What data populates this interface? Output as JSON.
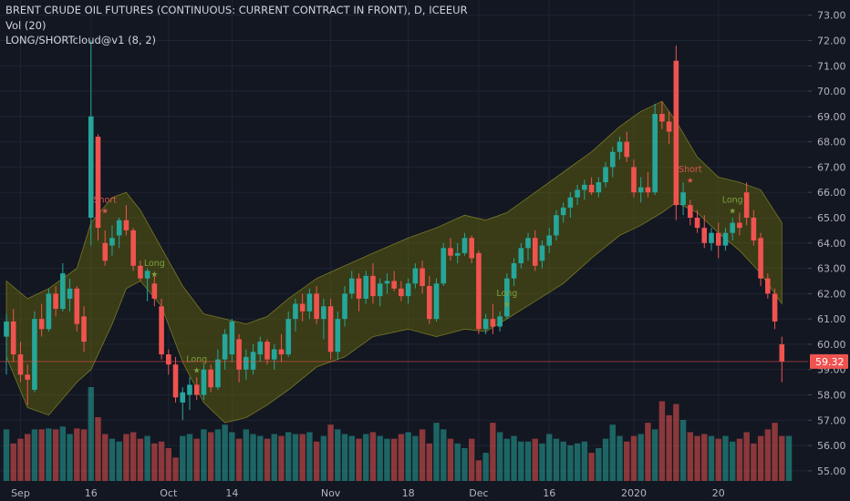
{
  "header": {
    "title": "BRENT CRUDE OIL FUTURES (CONTINUOUS: CURRENT CONTRACT IN FRONT), D, ICEEUR",
    "volume_label": "Vol (20)",
    "indicator_label": "LONG/SHORTcloud@v1 (8, 2)"
  },
  "colors": {
    "background": "#131722",
    "grid": "#1f2433",
    "up": "#26a69a",
    "down": "#ef5350",
    "cloud_fill": "#808000",
    "cloud_edge": "#9a9a2a",
    "signal": "#7fa040",
    "short_signal": "#d9534f",
    "axis_text": "#b2b5be",
    "price_line": "#ef5350"
  },
  "chart_data": {
    "type": "candlestick",
    "title": "BRENT CRUDE OIL FUTURES (CONTINUOUS: CURRENT CONTRACT IN FRONT), D, ICEEUR",
    "ylim": [
      54.6,
      73.6
    ],
    "y_ticks": [
      "55.00",
      "56.00",
      "57.00",
      "58.00",
      "59.00",
      "60.00",
      "61.00",
      "62.00",
      "63.00",
      "64.00",
      "65.00",
      "66.00",
      "67.00",
      "68.00",
      "69.00",
      "70.00",
      "71.00",
      "72.00",
      "73.00"
    ],
    "x_ticks": [
      {
        "label": "Sep",
        "index": 2
      },
      {
        "label": "16",
        "index": 12
      },
      {
        "label": "Oct",
        "index": 23
      },
      {
        "label": "14",
        "index": 32
      },
      {
        "label": "Nov",
        "index": 46
      },
      {
        "label": "18",
        "index": 57
      },
      {
        "label": "Dec",
        "index": 67
      },
      {
        "label": "16",
        "index": 77
      },
      {
        "label": "2020",
        "index": 89
      },
      {
        "label": "20",
        "index": 101
      }
    ],
    "last_price": 59.32,
    "last_price_label": "59.32",
    "candles": [
      {
        "o": 60.3,
        "h": 61.2,
        "l": 58.8,
        "c": 60.9
      },
      {
        "o": 60.9,
        "h": 61.4,
        "l": 59.3,
        "c": 59.6
      },
      {
        "o": 59.6,
        "h": 60.1,
        "l": 58.5,
        "c": 58.8
      },
      {
        "o": 58.8,
        "h": 59.2,
        "l": 57.6,
        "c": 58.6
      },
      {
        "o": 58.2,
        "h": 61.3,
        "l": 58.1,
        "c": 61.0
      },
      {
        "o": 61.0,
        "h": 61.6,
        "l": 60.3,
        "c": 60.6
      },
      {
        "o": 60.6,
        "h": 62.2,
        "l": 60.5,
        "c": 62.0
      },
      {
        "o": 62.0,
        "h": 62.3,
        "l": 61.1,
        "c": 61.4
      },
      {
        "o": 61.4,
        "h": 63.2,
        "l": 61.3,
        "c": 62.8
      },
      {
        "o": 61.8,
        "h": 62.6,
        "l": 61.3,
        "c": 62.2
      },
      {
        "o": 62.2,
        "h": 62.3,
        "l": 60.5,
        "c": 60.8
      },
      {
        "o": 61.1,
        "h": 61.5,
        "l": 59.7,
        "c": 60.1
      },
      {
        "o": 65.0,
        "h": 72.0,
        "l": 63.9,
        "c": 69.0
      },
      {
        "o": 68.2,
        "h": 68.3,
        "l": 64.1,
        "c": 64.6
      },
      {
        "o": 64.0,
        "h": 64.5,
        "l": 63.1,
        "c": 63.3
      },
      {
        "o": 63.9,
        "h": 64.7,
        "l": 63.5,
        "c": 64.2
      },
      {
        "o": 64.3,
        "h": 65.0,
        "l": 63.8,
        "c": 64.9
      },
      {
        "o": 64.9,
        "h": 65.5,
        "l": 64.3,
        "c": 64.5
      },
      {
        "o": 64.5,
        "h": 64.6,
        "l": 62.9,
        "c": 63.1
      },
      {
        "o": 63.1,
        "h": 63.3,
        "l": 62.5,
        "c": 62.6
      },
      {
        "o": 62.6,
        "h": 63.0,
        "l": 61.7,
        "c": 62.9
      },
      {
        "o": 62.4,
        "h": 62.8,
        "l": 61.5,
        "c": 61.8
      },
      {
        "o": 61.5,
        "h": 61.8,
        "l": 59.4,
        "c": 59.6
      },
      {
        "o": 59.6,
        "h": 59.8,
        "l": 58.8,
        "c": 59.2
      },
      {
        "o": 59.2,
        "h": 59.5,
        "l": 57.7,
        "c": 57.9
      },
      {
        "o": 57.7,
        "h": 58.3,
        "l": 57.0,
        "c": 58.1
      },
      {
        "o": 58.0,
        "h": 58.7,
        "l": 57.4,
        "c": 58.4
      },
      {
        "o": 58.4,
        "h": 58.7,
        "l": 57.8,
        "c": 58.0
      },
      {
        "o": 58.0,
        "h": 59.2,
        "l": 57.8,
        "c": 59.0
      },
      {
        "o": 59.0,
        "h": 59.2,
        "l": 58.1,
        "c": 58.3
      },
      {
        "o": 58.3,
        "h": 59.8,
        "l": 58.2,
        "c": 59.4
      },
      {
        "o": 59.4,
        "h": 60.6,
        "l": 59.0,
        "c": 60.4
      },
      {
        "o": 59.6,
        "h": 61.0,
        "l": 59.3,
        "c": 60.9
      },
      {
        "o": 60.2,
        "h": 60.4,
        "l": 58.5,
        "c": 59.0
      },
      {
        "o": 59.0,
        "h": 59.8,
        "l": 58.6,
        "c": 59.5
      },
      {
        "o": 59.0,
        "h": 60.0,
        "l": 58.8,
        "c": 59.7
      },
      {
        "o": 59.6,
        "h": 60.3,
        "l": 59.3,
        "c": 60.1
      },
      {
        "o": 60.1,
        "h": 60.2,
        "l": 59.2,
        "c": 59.4
      },
      {
        "o": 59.4,
        "h": 60.0,
        "l": 59.0,
        "c": 59.8
      },
      {
        "o": 59.8,
        "h": 60.4,
        "l": 59.3,
        "c": 59.6
      },
      {
        "o": 59.6,
        "h": 61.3,
        "l": 59.5,
        "c": 61.0
      },
      {
        "o": 61.0,
        "h": 61.8,
        "l": 60.5,
        "c": 61.6
      },
      {
        "o": 61.6,
        "h": 62.0,
        "l": 60.9,
        "c": 61.3
      },
      {
        "o": 61.3,
        "h": 62.2,
        "l": 61.0,
        "c": 62.0
      },
      {
        "o": 62.0,
        "h": 62.3,
        "l": 60.8,
        "c": 61.0
      },
      {
        "o": 61.0,
        "h": 61.8,
        "l": 60.2,
        "c": 61.5
      },
      {
        "o": 61.5,
        "h": 61.8,
        "l": 59.4,
        "c": 59.7
      },
      {
        "o": 59.7,
        "h": 61.3,
        "l": 59.4,
        "c": 61.0
      },
      {
        "o": 61.0,
        "h": 62.3,
        "l": 60.7,
        "c": 62.0
      },
      {
        "o": 62.0,
        "h": 62.9,
        "l": 61.8,
        "c": 62.6
      },
      {
        "o": 62.6,
        "h": 62.8,
        "l": 61.3,
        "c": 61.8
      },
      {
        "o": 61.8,
        "h": 62.9,
        "l": 61.6,
        "c": 62.7
      },
      {
        "o": 62.7,
        "h": 63.2,
        "l": 61.6,
        "c": 61.9
      },
      {
        "o": 61.9,
        "h": 62.6,
        "l": 61.5,
        "c": 62.4
      },
      {
        "o": 62.4,
        "h": 62.8,
        "l": 62.0,
        "c": 62.5
      },
      {
        "o": 62.5,
        "h": 62.9,
        "l": 62.1,
        "c": 62.2
      },
      {
        "o": 62.2,
        "h": 62.5,
        "l": 61.7,
        "c": 61.9
      },
      {
        "o": 61.9,
        "h": 62.6,
        "l": 61.6,
        "c": 62.4
      },
      {
        "o": 62.4,
        "h": 63.2,
        "l": 62.2,
        "c": 63.0
      },
      {
        "o": 63.0,
        "h": 63.3,
        "l": 62.0,
        "c": 62.3
      },
      {
        "o": 62.3,
        "h": 62.7,
        "l": 60.8,
        "c": 61.0
      },
      {
        "o": 61.0,
        "h": 62.6,
        "l": 60.9,
        "c": 62.4
      },
      {
        "o": 62.4,
        "h": 64.0,
        "l": 62.3,
        "c": 63.8
      },
      {
        "o": 63.8,
        "h": 64.2,
        "l": 63.3,
        "c": 63.5
      },
      {
        "o": 63.5,
        "h": 64.0,
        "l": 63.2,
        "c": 63.6
      },
      {
        "o": 63.6,
        "h": 64.4,
        "l": 63.5,
        "c": 64.2
      },
      {
        "o": 64.2,
        "h": 64.3,
        "l": 63.2,
        "c": 63.4
      },
      {
        "o": 63.6,
        "h": 63.7,
        "l": 60.4,
        "c": 60.6
      },
      {
        "o": 60.6,
        "h": 61.2,
        "l": 60.4,
        "c": 61.0
      },
      {
        "o": 61.0,
        "h": 61.6,
        "l": 60.4,
        "c": 60.7
      },
      {
        "o": 60.7,
        "h": 61.3,
        "l": 60.5,
        "c": 61.1
      },
      {
        "o": 61.1,
        "h": 62.8,
        "l": 61.0,
        "c": 62.6
      },
      {
        "o": 62.6,
        "h": 63.4,
        "l": 62.3,
        "c": 63.2
      },
      {
        "o": 63.2,
        "h": 64.0,
        "l": 63.0,
        "c": 63.8
      },
      {
        "o": 63.8,
        "h": 64.4,
        "l": 63.3,
        "c": 64.2
      },
      {
        "o": 64.2,
        "h": 64.5,
        "l": 62.9,
        "c": 63.1
      },
      {
        "o": 63.3,
        "h": 64.1,
        "l": 63.0,
        "c": 63.9
      },
      {
        "o": 63.9,
        "h": 64.6,
        "l": 63.6,
        "c": 64.3
      },
      {
        "o": 64.3,
        "h": 65.3,
        "l": 64.1,
        "c": 65.1
      },
      {
        "o": 65.1,
        "h": 65.6,
        "l": 64.8,
        "c": 65.4
      },
      {
        "o": 65.4,
        "h": 66.0,
        "l": 65.0,
        "c": 65.8
      },
      {
        "o": 65.8,
        "h": 66.3,
        "l": 65.5,
        "c": 66.1
      },
      {
        "o": 66.1,
        "h": 66.5,
        "l": 65.7,
        "c": 66.3
      },
      {
        "o": 66.3,
        "h": 66.6,
        "l": 65.9,
        "c": 66.0
      },
      {
        "o": 66.0,
        "h": 66.6,
        "l": 65.8,
        "c": 66.4
      },
      {
        "o": 66.4,
        "h": 67.2,
        "l": 66.2,
        "c": 67.0
      },
      {
        "o": 67.0,
        "h": 67.8,
        "l": 66.6,
        "c": 67.6
      },
      {
        "o": 67.6,
        "h": 68.2,
        "l": 67.3,
        "c": 68.0
      },
      {
        "o": 68.0,
        "h": 68.4,
        "l": 67.2,
        "c": 67.4
      },
      {
        "o": 67.0,
        "h": 67.3,
        "l": 65.8,
        "c": 66.0
      },
      {
        "o": 66.0,
        "h": 66.6,
        "l": 65.6,
        "c": 66.2
      },
      {
        "o": 66.2,
        "h": 66.8,
        "l": 65.8,
        "c": 66.0
      },
      {
        "o": 66.0,
        "h": 69.5,
        "l": 65.9,
        "c": 69.1
      },
      {
        "o": 69.1,
        "h": 69.6,
        "l": 68.5,
        "c": 68.8
      },
      {
        "o": 68.8,
        "h": 69.2,
        "l": 67.9,
        "c": 68.4
      },
      {
        "o": 71.2,
        "h": 71.8,
        "l": 64.9,
        "c": 65.5
      },
      {
        "o": 65.5,
        "h": 66.4,
        "l": 65.1,
        "c": 66.0
      },
      {
        "o": 65.5,
        "h": 65.7,
        "l": 64.7,
        "c": 65.0
      },
      {
        "o": 65.0,
        "h": 65.3,
        "l": 64.4,
        "c": 64.6
      },
      {
        "o": 64.6,
        "h": 65.1,
        "l": 63.8,
        "c": 64.0
      },
      {
        "o": 64.0,
        "h": 64.6,
        "l": 63.7,
        "c": 64.4
      },
      {
        "o": 64.4,
        "h": 64.8,
        "l": 63.4,
        "c": 63.9
      },
      {
        "o": 63.9,
        "h": 64.6,
        "l": 63.7,
        "c": 64.4
      },
      {
        "o": 64.4,
        "h": 65.0,
        "l": 64.1,
        "c": 64.8
      },
      {
        "o": 64.8,
        "h": 65.2,
        "l": 64.3,
        "c": 64.6
      },
      {
        "o": 66.0,
        "h": 66.4,
        "l": 64.7,
        "c": 65.0
      },
      {
        "o": 65.0,
        "h": 65.3,
        "l": 63.9,
        "c": 64.1
      },
      {
        "o": 64.2,
        "h": 64.4,
        "l": 62.3,
        "c": 62.6
      },
      {
        "o": 62.6,
        "h": 62.8,
        "l": 61.8,
        "c": 62.0
      },
      {
        "o": 62.0,
        "h": 62.2,
        "l": 60.6,
        "c": 60.9
      },
      {
        "o": 60.0,
        "h": 60.3,
        "l": 58.5,
        "c": 59.32
      }
    ],
    "volume": [
      55,
      40,
      45,
      50,
      55,
      55,
      56,
      55,
      58,
      50,
      56,
      55,
      100,
      68,
      50,
      45,
      42,
      50,
      52,
      45,
      48,
      40,
      42,
      35,
      25,
      48,
      50,
      45,
      55,
      52,
      55,
      60,
      52,
      45,
      55,
      50,
      48,
      45,
      50,
      48,
      52,
      50,
      50,
      52,
      42,
      48,
      60,
      55,
      50,
      48,
      45,
      50,
      52,
      48,
      45,
      45,
      50,
      52,
      48,
      55,
      40,
      62,
      55,
      45,
      40,
      35,
      45,
      22,
      30,
      62,
      52,
      45,
      48,
      42,
      42,
      45,
      40,
      50,
      45,
      42,
      38,
      40,
      42,
      30,
      35,
      45,
      60,
      48,
      42,
      48,
      50,
      62,
      55,
      85,
      70,
      82,
      65,
      52,
      48,
      50,
      48,
      45,
      48,
      42,
      45,
      52,
      40,
      48,
      55,
      62,
      48,
      48
    ],
    "cloud": [
      {
        "i": 0,
        "u": 62.5,
        "l": 59.5
      },
      {
        "i": 3,
        "u": 61.8,
        "l": 57.5
      },
      {
        "i": 6,
        "u": 62.2,
        "l": 57.2
      },
      {
        "i": 10,
        "u": 63.0,
        "l": 58.5
      },
      {
        "i": 12,
        "u": 64.8,
        "l": 59.0
      },
      {
        "i": 15,
        "u": 65.8,
        "l": 60.8
      },
      {
        "i": 17,
        "u": 66.0,
        "l": 62.2
      },
      {
        "i": 19,
        "u": 65.3,
        "l": 62.5
      },
      {
        "i": 22,
        "u": 63.8,
        "l": 61.5
      },
      {
        "i": 25,
        "u": 62.3,
        "l": 59.3
      },
      {
        "i": 28,
        "u": 61.2,
        "l": 57.7
      },
      {
        "i": 31,
        "u": 61.0,
        "l": 56.9
      },
      {
        "i": 34,
        "u": 60.8,
        "l": 57.1
      },
      {
        "i": 37,
        "u": 61.1,
        "l": 57.6
      },
      {
        "i": 40,
        "u": 61.8,
        "l": 58.2
      },
      {
        "i": 44,
        "u": 62.6,
        "l": 59.1
      },
      {
        "i": 48,
        "u": 63.1,
        "l": 59.5
      },
      {
        "i": 52,
        "u": 63.6,
        "l": 60.3
      },
      {
        "i": 57,
        "u": 64.2,
        "l": 60.6
      },
      {
        "i": 61,
        "u": 64.6,
        "l": 60.3
      },
      {
        "i": 65,
        "u": 65.1,
        "l": 60.6
      },
      {
        "i": 68,
        "u": 64.9,
        "l": 60.5
      },
      {
        "i": 71,
        "u": 65.2,
        "l": 61.0
      },
      {
        "i": 75,
        "u": 66.0,
        "l": 61.7
      },
      {
        "i": 79,
        "u": 66.8,
        "l": 62.4
      },
      {
        "i": 83,
        "u": 67.6,
        "l": 63.4
      },
      {
        "i": 87,
        "u": 68.6,
        "l": 64.3
      },
      {
        "i": 90,
        "u": 69.2,
        "l": 64.7
      },
      {
        "i": 93,
        "u": 69.6,
        "l": 65.2
      },
      {
        "i": 95,
        "u": 68.8,
        "l": 65.6
      },
      {
        "i": 98,
        "u": 67.4,
        "l": 65.2
      },
      {
        "i": 101,
        "u": 66.6,
        "l": 64.4
      },
      {
        "i": 104,
        "u": 66.4,
        "l": 63.7
      },
      {
        "i": 107,
        "u": 66.1,
        "l": 62.8
      },
      {
        "i": 110,
        "u": 64.8,
        "l": 61.6
      }
    ],
    "signals": [
      {
        "label": "Short",
        "index": 14,
        "price": 65.6,
        "kind": "short"
      },
      {
        "label": "Long",
        "index": 21,
        "price": 63.1,
        "kind": "long"
      },
      {
        "label": "Long",
        "index": 27,
        "price": 59.3,
        "kind": "long"
      },
      {
        "label": "Long",
        "index": 71,
        "price": 61.9,
        "kind": "long"
      },
      {
        "label": "Short",
        "index": 97,
        "price": 66.8,
        "kind": "short"
      },
      {
        "label": "Long",
        "index": 103,
        "price": 65.6,
        "kind": "long"
      }
    ],
    "volume_ylim": [
      0,
      100
    ]
  }
}
